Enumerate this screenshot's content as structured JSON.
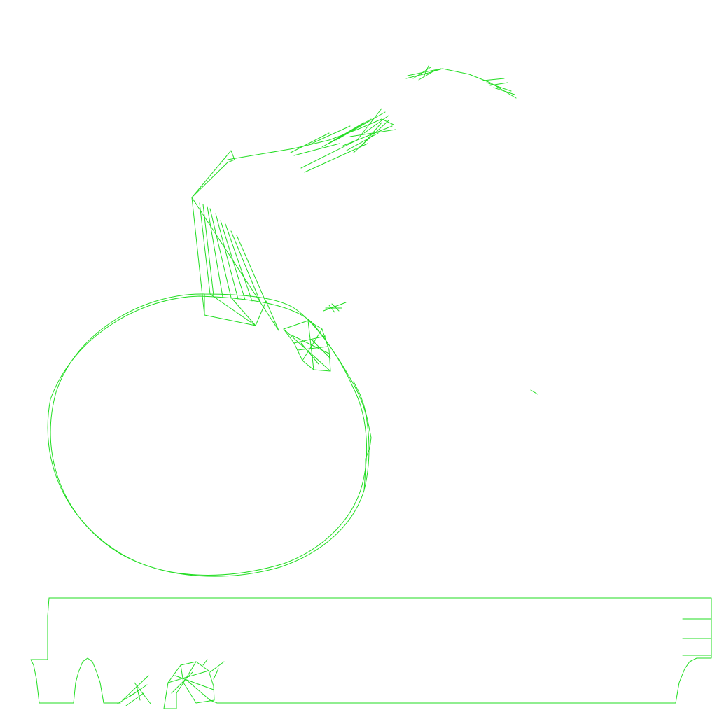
{
  "colors": {
    "background": "#ffffff",
    "stroke": "#22dd22"
  }
}
